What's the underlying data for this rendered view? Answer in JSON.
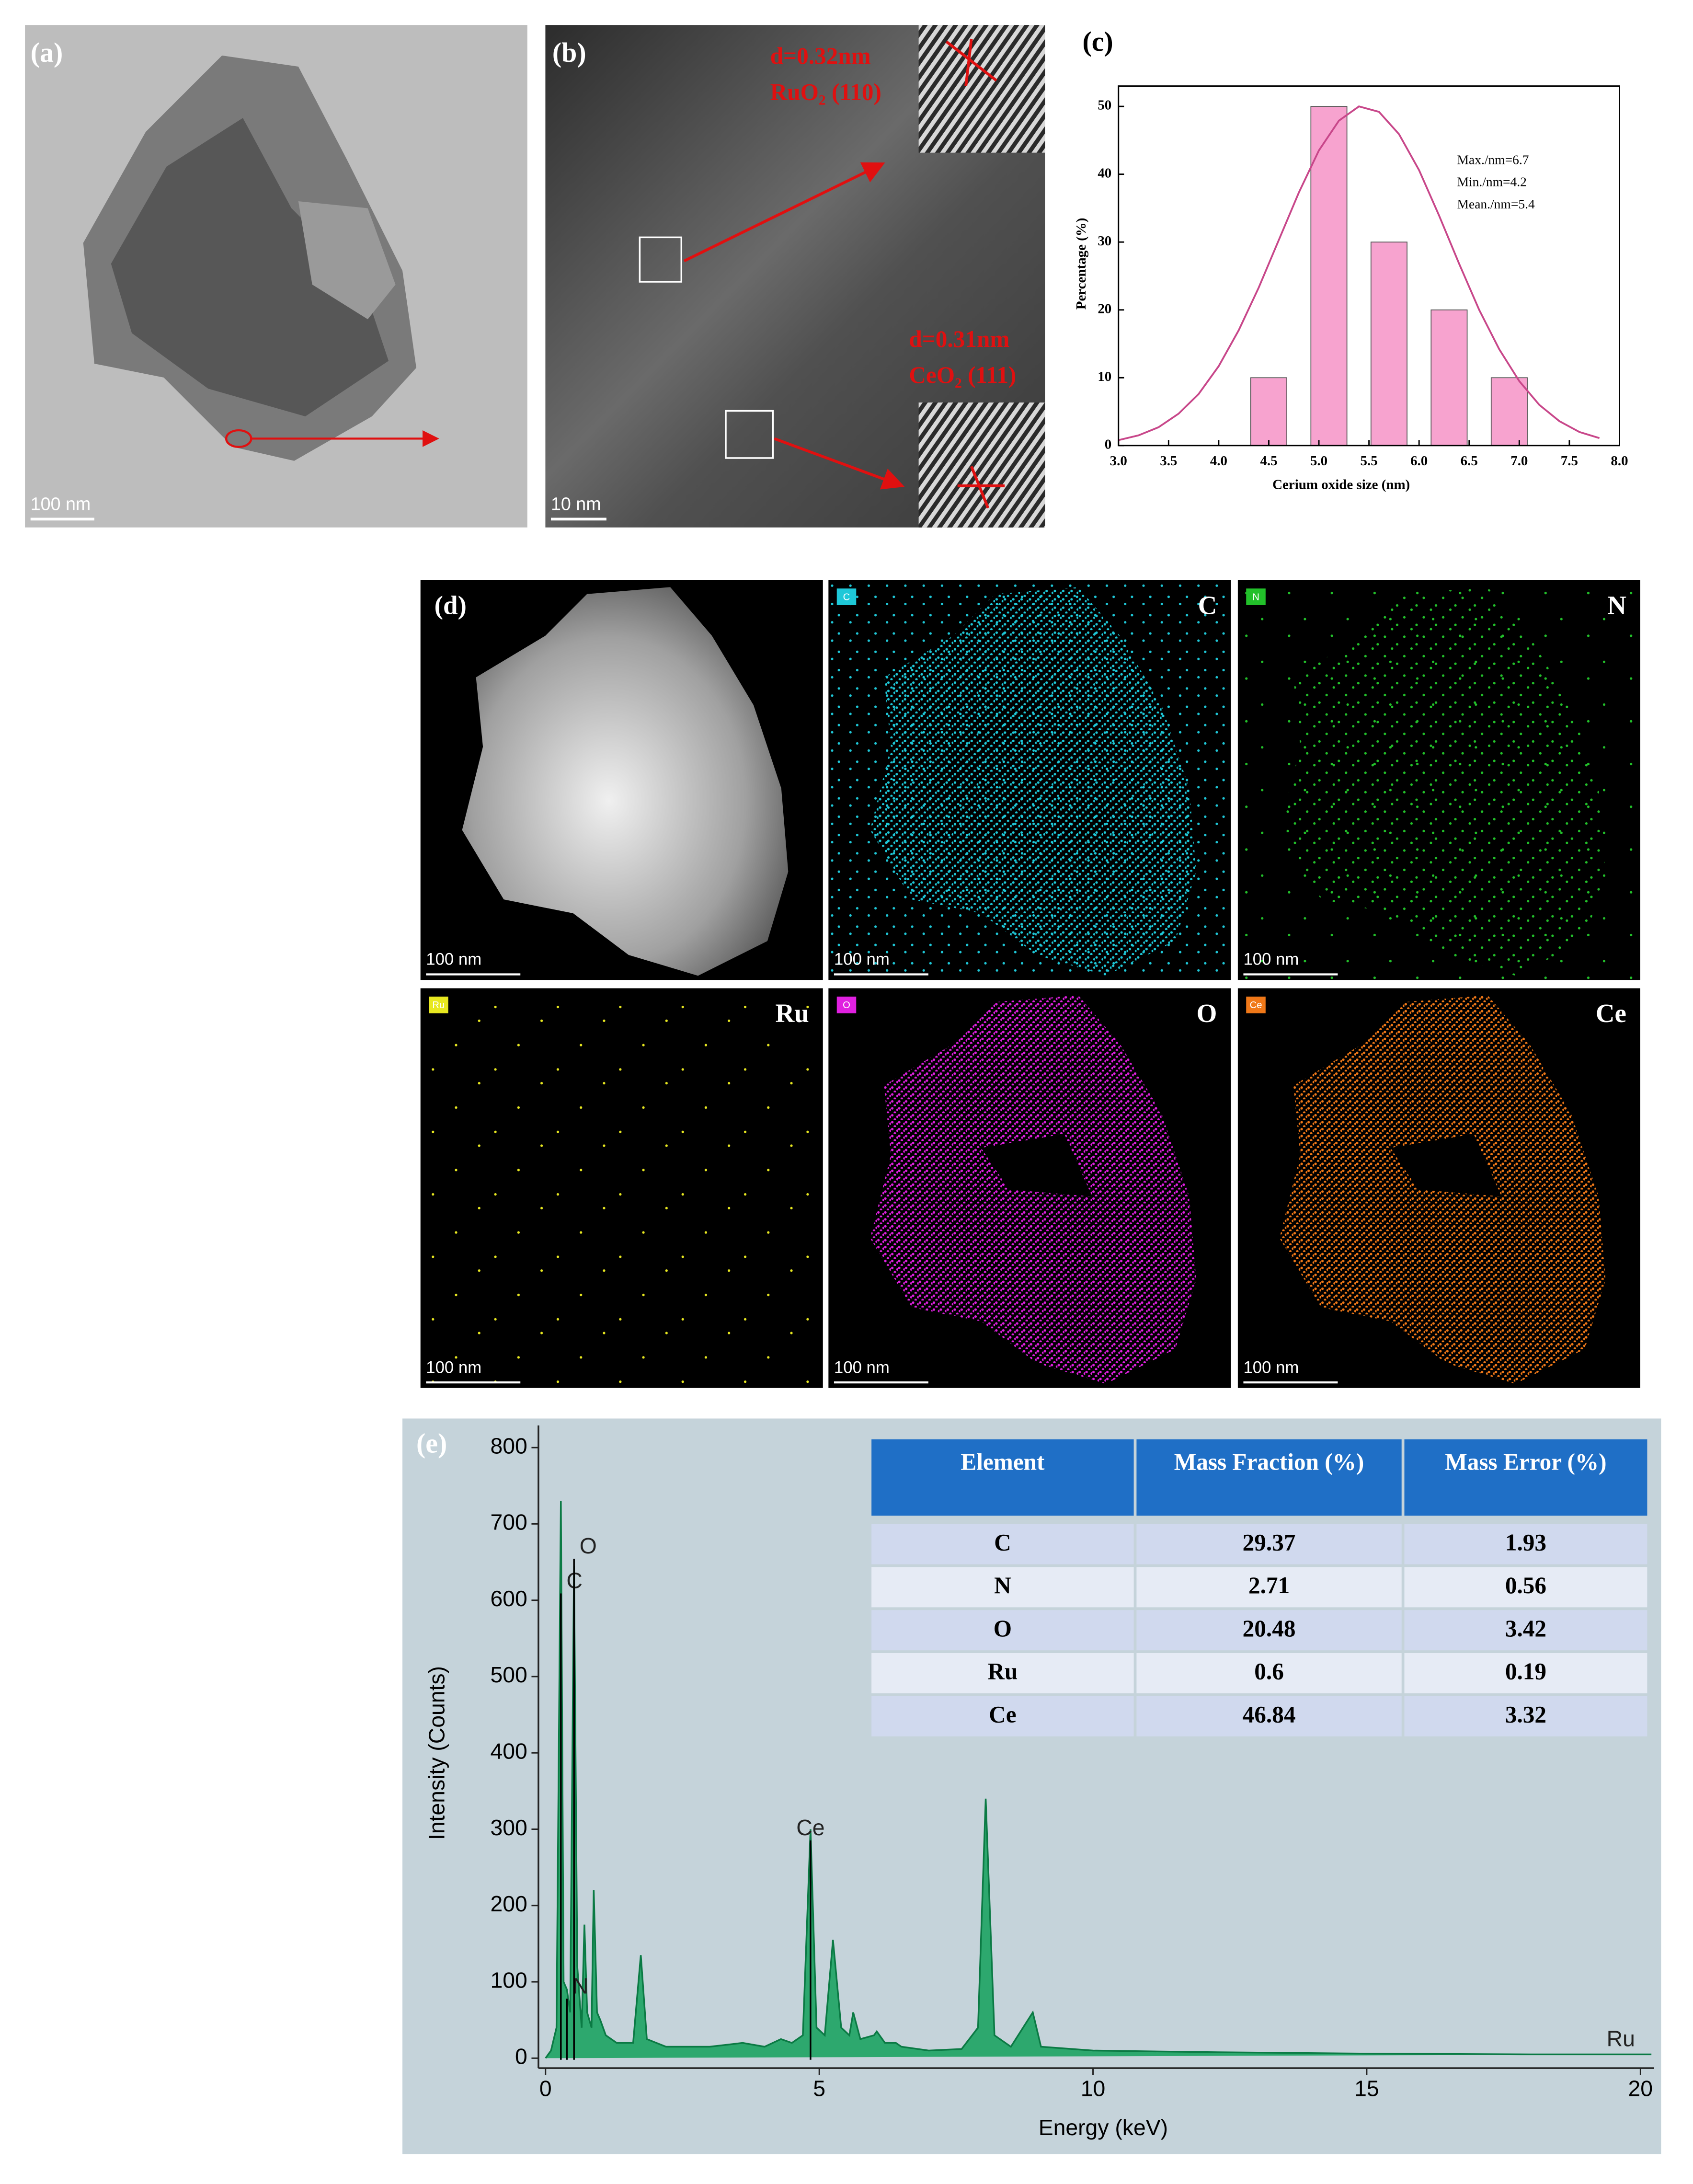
{
  "panels": {
    "a": {
      "label": "(a)",
      "scale_bar": "100 nm"
    },
    "b": {
      "label": "(b)",
      "scale_bar": "10 nm",
      "annotations": [
        "d=0.32nm",
        "RuO₂ (110)",
        "d=0.31nm",
        "CeO₂ (111)"
      ]
    },
    "c": {
      "label": "(c)"
    },
    "d": {
      "label": "(d)",
      "image_scale_bar": "100 nm",
      "maps": [
        {
          "element": "C",
          "color": "#1ec8d8",
          "scale_bar": "100 nm"
        },
        {
          "element": "N",
          "color": "#22c02a",
          "scale_bar": "100 nm"
        },
        {
          "element": "Ru",
          "color": "#e8e820",
          "scale_bar": "100 nm"
        },
        {
          "element": "O",
          "color": "#e020e0",
          "scale_bar": "100 nm"
        },
        {
          "element": "Ce",
          "color": "#f07818",
          "scale_bar": "100 nm"
        }
      ]
    },
    "e": {
      "label": "(e)"
    }
  },
  "chart_data": [
    {
      "type": "histogram",
      "xlabel": "Cerium oxide size (nm)",
      "ylabel": "Percentage (%)",
      "bins": [
        4.2,
        4.8,
        5.4,
        6.0,
        6.6,
        7.2
      ],
      "values": [
        10,
        50,
        30,
        20,
        10
      ],
      "color": "#f7a3cf",
      "fit": {
        "x": [
          3.0,
          3.2,
          3.4,
          3.6,
          3.8,
          4.0,
          4.2,
          4.4,
          4.6,
          4.8,
          5.0,
          5.2,
          5.4,
          5.6,
          5.8,
          6.0,
          6.2,
          6.4,
          6.6,
          6.8,
          7.0,
          7.2,
          7.4,
          7.6,
          7.8
        ],
        "values": [
          0.8,
          1.5,
          2.7,
          4.7,
          7.6,
          11.7,
          17.0,
          23.3,
          30.3,
          37.3,
          43.5,
          47.9,
          50.0,
          49.2,
          45.9,
          40.6,
          33.9,
          26.8,
          20.0,
          14.2,
          9.5,
          6.0,
          3.6,
          2.0,
          1.1
        ],
        "color": "#c8478a"
      },
      "annotations": [
        "Max./nm=6.7",
        "Min./nm=4.2",
        "Mean./nm=5.4"
      ],
      "xlim": [
        3.0,
        8.0
      ],
      "ylim": [
        0,
        53
      ],
      "xticks": [
        {
          "value": 3,
          "label": "3.0"
        },
        3.5,
        {
          "value": 4,
          "label": "4.0"
        },
        4.5,
        {
          "value": 5,
          "label": "5.0"
        },
        5.5,
        {
          "value": 6,
          "label": "6.0"
        },
        6.5,
        {
          "value": 7,
          "label": "7.0"
        },
        7.5,
        {
          "value": 8,
          "label": "8.0"
        }
      ],
      "yticks": [
        0,
        10,
        20,
        30,
        40,
        50
      ]
    },
    {
      "type": "line",
      "xlabel": "Energy (keV)",
      "ylabel": "Intensity (Counts)",
      "color": "#12a05a",
      "x": [
        0,
        0.1,
        0.2,
        0.28,
        0.33,
        0.39,
        0.45,
        0.52,
        0.58,
        0.66,
        0.71,
        0.76,
        0.84,
        0.88,
        0.94,
        1.0,
        1.1,
        1.3,
        1.6,
        1.74,
        1.85,
        2.2,
        3,
        3.6,
        4.0,
        4.3,
        4.5,
        4.7,
        4.84,
        4.95,
        5.1,
        5.25,
        5.4,
        5.55,
        5.62,
        5.75,
        6.0,
        6.05,
        6.2,
        6.4,
        6.5,
        7.0,
        7.6,
        7.9,
        8.04,
        8.2,
        8.5,
        8.9,
        9.05,
        10,
        12,
        15,
        18,
        20.2
      ],
      "values": [
        0,
        10,
        40,
        730,
        100,
        90,
        60,
        645,
        120,
        40,
        175,
        60,
        40,
        220,
        60,
        50,
        30,
        20,
        20,
        135,
        25,
        15,
        15,
        20,
        15,
        25,
        20,
        30,
        300,
        40,
        30,
        155,
        40,
        30,
        60,
        25,
        30,
        35,
        20,
        20,
        15,
        10,
        12,
        40,
        340,
        30,
        15,
        60,
        15,
        10,
        8,
        6,
        5,
        5
      ],
      "peak_labels": [
        {
          "label": "C",
          "x": 0.28
        },
        {
          "label": "N",
          "x": 0.39
        },
        {
          "label": "O",
          "x": 0.52
        },
        {
          "label": "Ce",
          "x": 4.84
        },
        {
          "label": "Ru",
          "x": 19.28
        }
      ],
      "xlim": [
        -0.13,
        20.25
      ],
      "ylim": [
        -13,
        829
      ],
      "xticks": [
        0,
        5,
        10,
        15,
        20
      ],
      "yticks": [
        0,
        100,
        200,
        300,
        400,
        500,
        600,
        700,
        800
      ]
    }
  ],
  "table": {
    "columns": [
      "Element",
      "Mass Fraction (%)",
      "Mass Error (%)"
    ],
    "rows": [
      [
        "C",
        29.37,
        1.93
      ],
      [
        "N",
        2.71,
        0.56
      ],
      [
        "O",
        20.48,
        3.42
      ],
      [
        "Ru",
        0.6,
        0.19
      ],
      [
        "Ce",
        46.84,
        3.32
      ]
    ]
  }
}
